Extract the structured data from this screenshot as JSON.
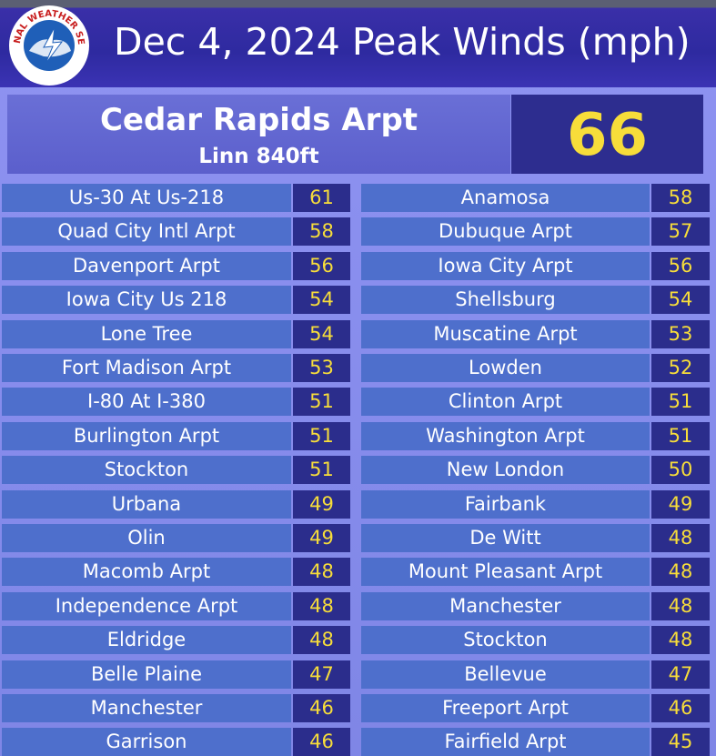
{
  "header": {
    "title": "Dec 4, 2024 Peak Winds (mph)",
    "logo_text": "NATIONAL WEATHER SERVICE"
  },
  "feature": {
    "name": "Cedar Rapids Arpt",
    "subtitle": "Linn 840ft",
    "value": 66
  },
  "columns": [
    [
      [
        "Us-30 At Us-218",
        61
      ],
      [
        "Quad City Intl Arpt",
        58
      ],
      [
        "Davenport Arpt",
        56
      ],
      [
        "Iowa City Us 218",
        54
      ],
      [
        "Lone Tree",
        54
      ],
      [
        "Fort Madison Arpt",
        53
      ],
      [
        "I-80 At I-380",
        51
      ],
      [
        "Burlington Arpt",
        51
      ],
      [
        "Stockton",
        51
      ],
      [
        "Urbana",
        49
      ],
      [
        "Olin",
        49
      ],
      [
        "Macomb Arpt",
        48
      ],
      [
        "Independence Arpt",
        48
      ],
      [
        "Eldridge",
        48
      ],
      [
        "Belle Plaine",
        47
      ],
      [
        "Manchester",
        46
      ],
      [
        "Garrison",
        46
      ]
    ],
    [
      [
        "Anamosa",
        58
      ],
      [
        "Dubuque Arpt",
        57
      ],
      [
        "Iowa City Arpt",
        56
      ],
      [
        "Shellsburg",
        54
      ],
      [
        "Muscatine Arpt",
        53
      ],
      [
        "Lowden",
        52
      ],
      [
        "Clinton Arpt",
        51
      ],
      [
        "Washington Arpt",
        51
      ],
      [
        "New London",
        50
      ],
      [
        "Fairbank",
        49
      ],
      [
        "De Witt",
        48
      ],
      [
        "Mount Pleasant Arpt",
        48
      ],
      [
        "Manchester",
        48
      ],
      [
        "Stockton",
        48
      ],
      [
        "Bellevue",
        47
      ],
      [
        "Freeport Arpt",
        46
      ],
      [
        "Fairfield Arpt",
        45
      ]
    ]
  ]
}
